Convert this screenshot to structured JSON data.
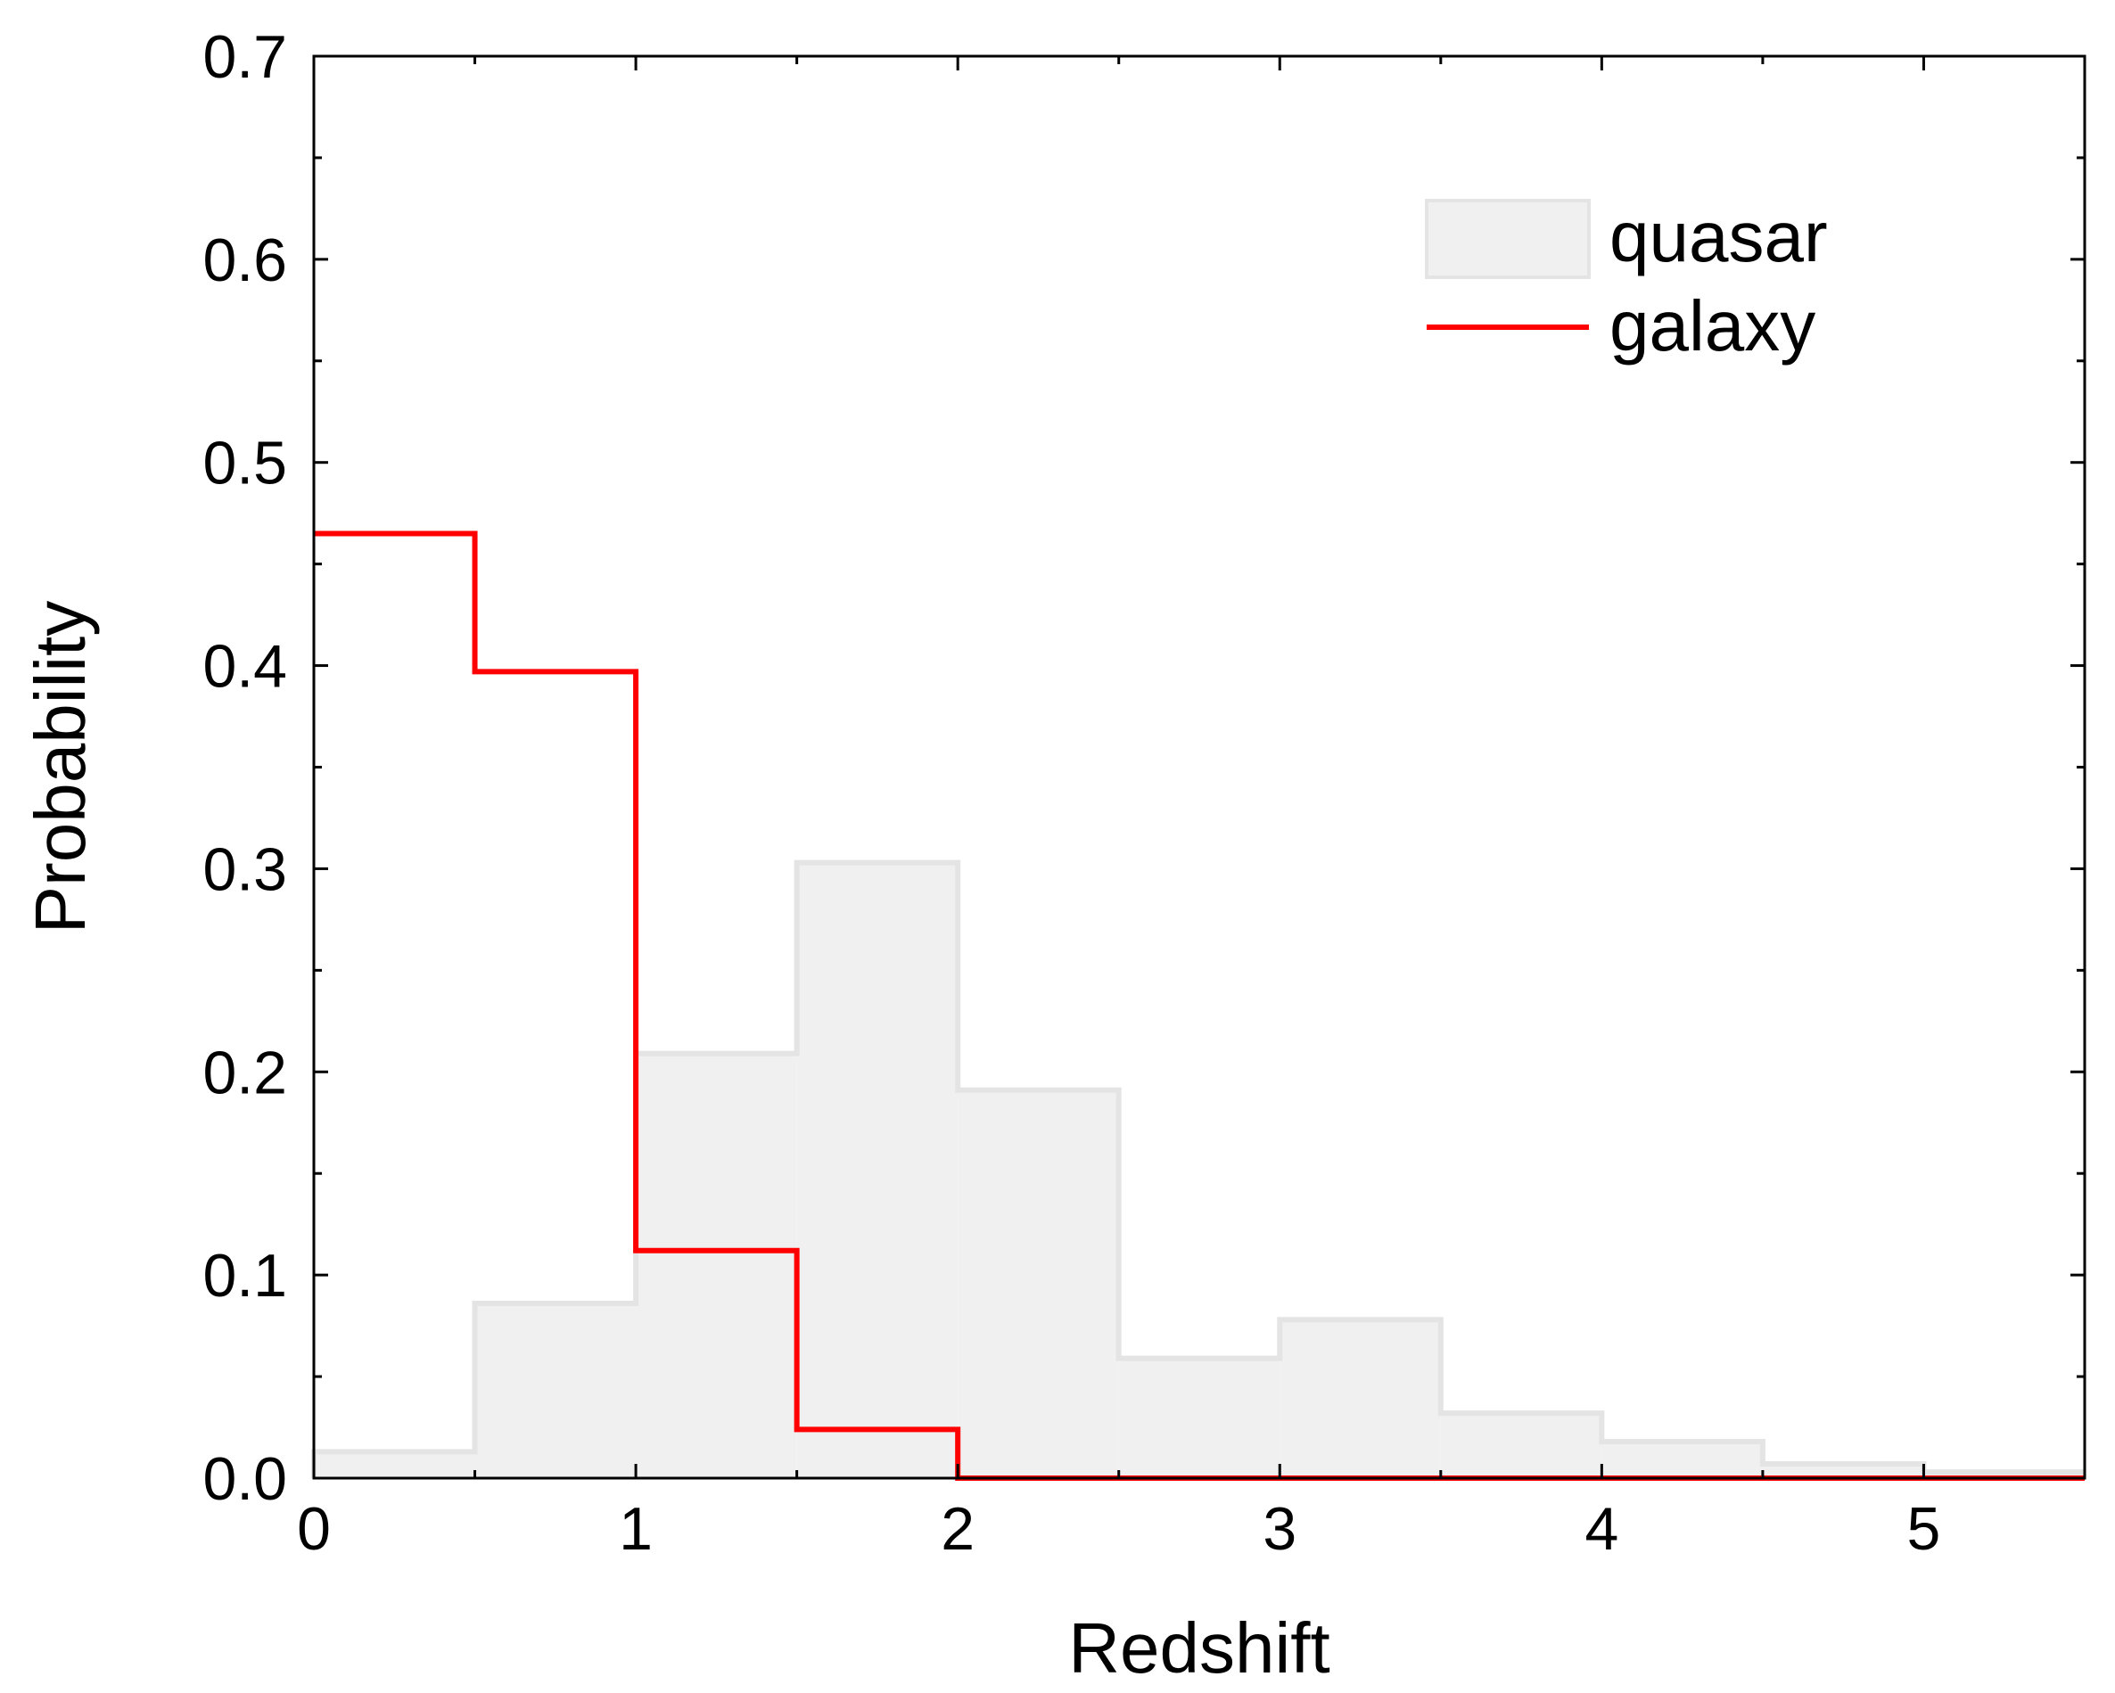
{
  "chart_data": {
    "type": "histogram",
    "xlabel": "Redshift",
    "ylabel": "Probability",
    "xlim": [
      0,
      5.5
    ],
    "ylim": [
      0,
      0.7
    ],
    "x_ticks": [
      "0",
      "1",
      "2",
      "3",
      "4",
      "5"
    ],
    "y_ticks": [
      "0.0",
      "0.1",
      "0.2",
      "0.3",
      "0.4",
      "0.5",
      "0.6",
      "0.7"
    ],
    "bin_edges": [
      0,
      0.5,
      1.0,
      1.5,
      2.0,
      2.5,
      3.0,
      3.5,
      4.0,
      4.5,
      5.0,
      5.5
    ],
    "grid": false,
    "legend_position": "top-right",
    "series": [
      {
        "name": "quasar",
        "style": "filled-step",
        "fill_color": "#f0f0f0",
        "edge_color": "#e4e4e4",
        "values": [
          0.013,
          0.086,
          0.209,
          0.303,
          0.191,
          0.059,
          0.078,
          0.032,
          0.018,
          0.007,
          0.003
        ]
      },
      {
        "name": "galaxy",
        "style": "step-line",
        "color": "#ff0000",
        "values": [
          0.465,
          0.397,
          0.112,
          0.024,
          0.0,
          0.0,
          0.0,
          0.0,
          0.0,
          0.0,
          0.0
        ]
      }
    ]
  }
}
